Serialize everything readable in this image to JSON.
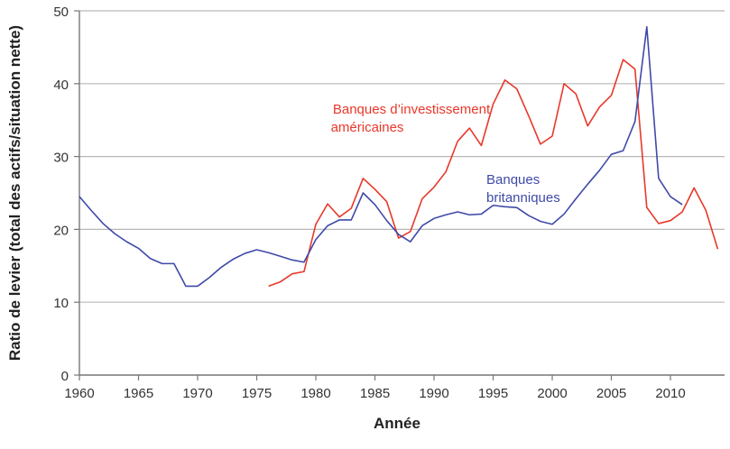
{
  "chart_data": {
    "type": "line",
    "title": "",
    "xlabel": "Année",
    "ylabel": "Ratio de levier (total des actifs/situation nette)",
    "xlim": [
      1960,
      2014
    ],
    "ylim": [
      0,
      50
    ],
    "xticks": [
      1960,
      1965,
      1970,
      1975,
      1980,
      1985,
      1990,
      1995,
      2000,
      2005,
      2010
    ],
    "yticks": [
      0,
      10,
      20,
      30,
      40,
      50
    ],
    "grid": "horizontal",
    "legend": "inline labels",
    "series": [
      {
        "name": "Banques d’investissement américaines",
        "label_lines": [
          "Banques d’investissement",
          "américaines"
        ],
        "color": "#e8382a",
        "x": [
          1976,
          1977,
          1978,
          1979,
          1980,
          1981,
          1982,
          1983,
          1984,
          1985,
          1986,
          1987,
          1988,
          1989,
          1990,
          1991,
          1992,
          1993,
          1994,
          1995,
          1996,
          1997,
          1998,
          1999,
          2000,
          2001,
          2002,
          2003,
          2004,
          2005,
          2006,
          2007,
          2008,
          2009,
          2010,
          2011,
          2012,
          2013,
          2014
        ],
        "values": [
          12.2,
          12.8,
          13.9,
          14.2,
          20.7,
          23.5,
          21.7,
          22.9,
          27,
          25.5,
          23.8,
          18.8,
          19.7,
          24.2,
          25.8,
          27.9,
          32.1,
          33.9,
          31.5,
          37.2,
          40.5,
          39.3,
          35.6,
          31.7,
          32.8,
          40,
          38.6,
          34.2,
          36.8,
          38.4,
          43.3,
          42,
          23,
          20.8,
          21.2,
          22.4,
          25.7,
          22.6,
          17.3
        ]
      },
      {
        "name": "Banques britanniques",
        "label_lines": [
          "Banques",
          "britanniques"
        ],
        "color": "#3f4aa8",
        "x": [
          1960,
          1961,
          1962,
          1963,
          1964,
          1965,
          1966,
          1967,
          1968,
          1969,
          1970,
          1971,
          1972,
          1973,
          1974,
          1975,
          1976,
          1977,
          1978,
          1979,
          1980,
          1981,
          1982,
          1983,
          1984,
          1985,
          1986,
          1987,
          1988,
          1989,
          1990,
          1991,
          1992,
          1993,
          1994,
          1995,
          1996,
          1997,
          1998,
          1999,
          2000,
          2001,
          2002,
          2003,
          2004,
          2005,
          2006,
          2007,
          2008,
          2009,
          2010,
          2011
        ],
        "values": [
          24.5,
          22.6,
          20.8,
          19.4,
          18.3,
          17.4,
          16,
          15.3,
          15.3,
          12.2,
          12.2,
          13.4,
          14.8,
          15.9,
          16.7,
          17.2,
          16.8,
          16.3,
          15.8,
          15.5,
          18.6,
          20.5,
          21.3,
          21.3,
          25,
          23.4,
          21.2,
          19.3,
          18.3,
          20.5,
          21.5,
          22,
          22.4,
          22,
          22.1,
          23.3,
          23.1,
          23,
          21.9,
          21.1,
          20.7,
          22.1,
          24.2,
          26.2,
          28.1,
          30.3,
          30.8,
          34.8,
          47.8,
          27,
          24.5,
          23.4
        ]
      }
    ]
  }
}
